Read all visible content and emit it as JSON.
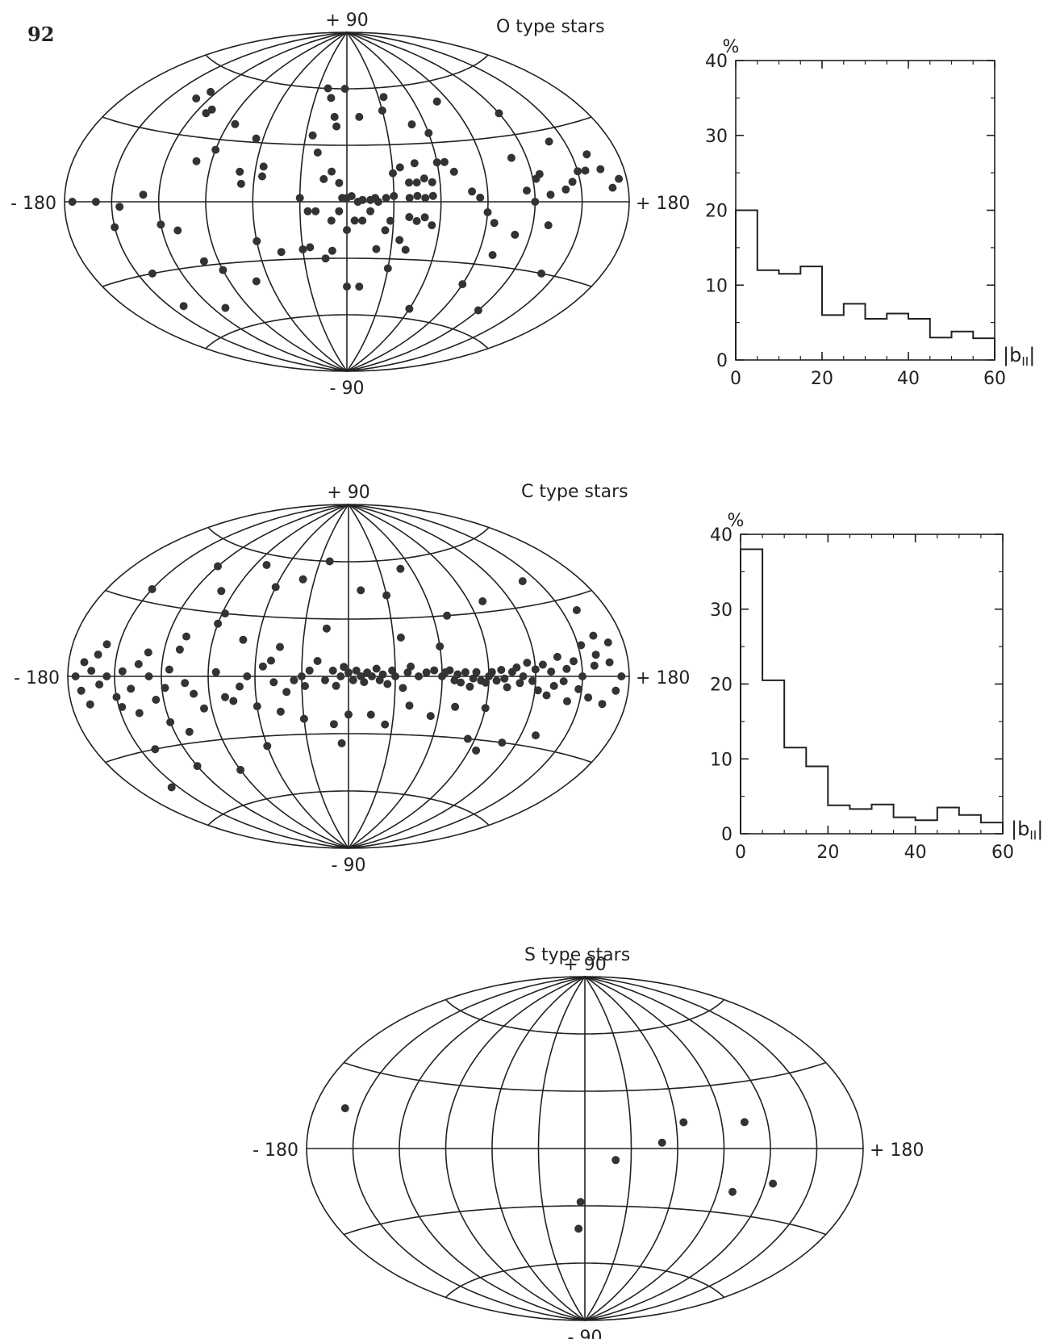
{
  "page_number": "92",
  "chart_data": [
    {
      "type": "scatter",
      "projection": "aitoff",
      "title": "O type stars",
      "lon_labels": [
        "- 180",
        "+ 180"
      ],
      "lat_labels": [
        "+ 90",
        "- 90"
      ],
      "points": [
        [
          -160,
          0
        ],
        [
          -150,
          -10
        ],
        [
          -145,
          -2
        ],
        [
          -140,
          -30
        ],
        [
          -130,
          3
        ],
        [
          -120,
          -10
        ],
        [
          -110,
          -13
        ],
        [
          -100,
          -28
        ],
        [
          -90,
          -33
        ],
        [
          -130,
          46
        ],
        [
          -125,
          50
        ],
        [
          -112,
          41
        ],
        [
          -110,
          43
        ],
        [
          -90,
          25
        ],
        [
          -85,
          38
        ],
        [
          -100,
          19
        ],
        [
          -70,
          15
        ],
        [
          -68,
          9
        ],
        [
          -65,
          32
        ],
        [
          -55,
          18
        ],
        [
          -55,
          13
        ],
        [
          -60,
          -20
        ],
        [
          -45,
          -26
        ],
        [
          -30,
          -25
        ],
        [
          -25,
          -24
        ],
        [
          -15,
          -30
        ],
        [
          -10,
          -26
        ],
        [
          -25,
          -5
        ],
        [
          -30,
          2
        ],
        [
          -20,
          -5
        ],
        [
          -10,
          -10
        ],
        [
          -5,
          -5
        ],
        [
          -15,
          12
        ],
        [
          -10,
          16
        ],
        [
          -5,
          10
        ],
        [
          -20,
          26
        ],
        [
          -25,
          35
        ],
        [
          -15,
          55
        ],
        [
          -20,
          60
        ],
        [
          -10,
          45
        ],
        [
          -8,
          40
        ],
        [
          -2,
          60
        ],
        [
          -3,
          2
        ],
        [
          0,
          2
        ],
        [
          3,
          3
        ],
        [
          7,
          0
        ],
        [
          10,
          1
        ],
        [
          15,
          1
        ],
        [
          18,
          2
        ],
        [
          20,
          0
        ],
        [
          25,
          2
        ],
        [
          30,
          3
        ],
        [
          40,
          2
        ],
        [
          45,
          3
        ],
        [
          50,
          2
        ],
        [
          55,
          3
        ],
        [
          40,
          10
        ],
        [
          45,
          10
        ],
        [
          50,
          12
        ],
        [
          55,
          10
        ],
        [
          30,
          15
        ],
        [
          35,
          18
        ],
        [
          45,
          20
        ],
        [
          60,
          20
        ],
        [
          25,
          -15
        ],
        [
          28,
          -10
        ],
        [
          40,
          -8
        ],
        [
          45,
          -10
        ],
        [
          50,
          -8
        ],
        [
          55,
          -12
        ],
        [
          35,
          -20
        ],
        [
          40,
          -25
        ],
        [
          10,
          -10
        ],
        [
          5,
          -10
        ],
        [
          15,
          -5
        ],
        [
          0,
          -15
        ],
        [
          20,
          -25
        ],
        [
          30,
          -35
        ],
        [
          0,
          -45
        ],
        [
          10,
          -45
        ],
        [
          10,
          45
        ],
        [
          30,
          48
        ],
        [
          35,
          55
        ],
        [
          50,
          40
        ],
        [
          60,
          35
        ],
        [
          65,
          20
        ],
        [
          70,
          15
        ],
        [
          80,
          5
        ],
        [
          85,
          2
        ],
        [
          90,
          -5
        ],
        [
          95,
          -10
        ],
        [
          100,
          -25
        ],
        [
          110,
          -15
        ],
        [
          115,
          5
        ],
        [
          120,
          0
        ],
        [
          122,
          10
        ],
        [
          125,
          12
        ],
        [
          130,
          3
        ],
        [
          140,
          5
        ],
        [
          145,
          8
        ],
        [
          150,
          12
        ],
        [
          155,
          12
        ],
        [
          160,
          18
        ],
        [
          165,
          12
        ],
        [
          170,
          5
        ],
        [
          175,
          8
        ],
        [
          110,
          20
        ],
        [
          120,
          40
        ],
        [
          130,
          -10
        ],
        [
          140,
          25
        ],
        [
          -175,
          0
        ],
        [
          -140,
          -45
        ],
        [
          -110,
          -50
        ],
        [
          -70,
          -40
        ],
        [
          140,
          -30
        ],
        [
          120,
          -50
        ],
        [
          90,
          -40
        ],
        [
          60,
          -55
        ],
        [
          80,
          50
        ]
      ]
    },
    {
      "type": "bar",
      "xlabel": "|b",
      "xlabel_sub": "II",
      "xlabel_suffix": "|",
      "ylabel": "%",
      "xlim": [
        0,
        60
      ],
      "ylim": [
        0,
        40
      ],
      "x_ticks": [
        "0",
        "20",
        "40",
        "60"
      ],
      "y_ticks": [
        "0",
        "10",
        "20",
        "30",
        "40"
      ],
      "bin_edges": [
        0,
        5,
        10,
        15,
        20,
        25,
        30,
        35,
        40,
        45,
        50,
        55,
        60
      ],
      "values": [
        20,
        12,
        11.5,
        12.5,
        6,
        7.5,
        5.5,
        6.2,
        5.5,
        3,
        3.8,
        2.9
      ]
    },
    {
      "type": "scatter",
      "projection": "aitoff",
      "title": "C type stars",
      "lon_labels": [
        "- 180",
        "+ 180"
      ],
      "lat_labels": [
        "+ 90",
        "- 90"
      ],
      "points": [
        [
          -175,
          0
        ],
        [
          -172,
          -5
        ],
        [
          -170,
          5
        ],
        [
          -168,
          -10
        ],
        [
          -165,
          2
        ],
        [
          -162,
          8
        ],
        [
          -160,
          -3
        ],
        [
          -158,
          12
        ],
        [
          -155,
          0
        ],
        [
          -150,
          -8
        ],
        [
          -148,
          -12
        ],
        [
          -145,
          2
        ],
        [
          -140,
          -5
        ],
        [
          -138,
          -15
        ],
        [
          -135,
          5
        ],
        [
          -130,
          10
        ],
        [
          -128,
          0
        ],
        [
          -125,
          -10
        ],
        [
          -120,
          -20
        ],
        [
          -118,
          -5
        ],
        [
          -115,
          3
        ],
        [
          -110,
          12
        ],
        [
          -108,
          18
        ],
        [
          -105,
          -3
        ],
        [
          -100,
          -8
        ],
        [
          -95,
          -15
        ],
        [
          -90,
          25
        ],
        [
          -88,
          30
        ],
        [
          -85,
          2
        ],
        [
          -80,
          -10
        ],
        [
          -75,
          -12
        ],
        [
          -70,
          -5
        ],
        [
          -65,
          0
        ],
        [
          -60,
          -15
        ],
        [
          -55,
          5
        ],
        [
          -50,
          8
        ],
        [
          -48,
          -3
        ],
        [
          -45,
          -18
        ],
        [
          -40,
          -8
        ],
        [
          -35,
          -2
        ],
        [
          -30,
          0
        ],
        [
          -28,
          -5
        ],
        [
          -25,
          3
        ],
        [
          -20,
          8
        ],
        [
          -15,
          -2
        ],
        [
          -10,
          3
        ],
        [
          -8,
          -5
        ],
        [
          -5,
          0
        ],
        [
          -3,
          5
        ],
        [
          0,
          2
        ],
        [
          3,
          -2
        ],
        [
          5,
          3
        ],
        [
          8,
          0
        ],
        [
          10,
          -3
        ],
        [
          12,
          2
        ],
        [
          15,
          0
        ],
        [
          18,
          4
        ],
        [
          20,
          -2
        ],
        [
          22,
          1
        ],
        [
          25,
          -4
        ],
        [
          28,
          3
        ],
        [
          30,
          0
        ],
        [
          35,
          -6
        ],
        [
          38,
          2
        ],
        [
          40,
          5
        ],
        [
          45,
          0
        ],
        [
          50,
          2
        ],
        [
          55,
          3
        ],
        [
          60,
          0
        ],
        [
          62,
          2
        ],
        [
          65,
          3
        ],
        [
          68,
          -2
        ],
        [
          70,
          1
        ],
        [
          72,
          -3
        ],
        [
          75,
          2
        ],
        [
          78,
          -5
        ],
        [
          80,
          -1
        ],
        [
          82,
          2
        ],
        [
          85,
          -2
        ],
        [
          88,
          -3
        ],
        [
          90,
          0
        ],
        [
          92,
          2
        ],
        [
          95,
          -2
        ],
        [
          98,
          3
        ],
        [
          100,
          -1
        ],
        [
          102,
          -5
        ],
        [
          105,
          2
        ],
        [
          108,
          4
        ],
        [
          110,
          -3
        ],
        [
          112,
          0
        ],
        [
          115,
          6
        ],
        [
          118,
          -2
        ],
        [
          120,
          3
        ],
        [
          122,
          -6
        ],
        [
          125,
          5
        ],
        [
          128,
          -8
        ],
        [
          130,
          2
        ],
        [
          132,
          -4
        ],
        [
          135,
          8
        ],
        [
          138,
          -2
        ],
        [
          140,
          3
        ],
        [
          142,
          -10
        ],
        [
          145,
          6
        ],
        [
          148,
          -5
        ],
        [
          150,
          0
        ],
        [
          152,
          12
        ],
        [
          155,
          -8
        ],
        [
          158,
          4
        ],
        [
          160,
          8
        ],
        [
          162,
          15
        ],
        [
          165,
          -10
        ],
        [
          168,
          5
        ],
        [
          170,
          12
        ],
        [
          172,
          -5
        ],
        [
          175,
          0
        ],
        [
          -10,
          -25
        ],
        [
          -5,
          -35
        ],
        [
          15,
          -20
        ],
        [
          25,
          -25
        ],
        [
          40,
          -15
        ],
        [
          55,
          -20
        ],
        [
          70,
          -15
        ],
        [
          85,
          -30
        ],
        [
          95,
          -35
        ],
        [
          110,
          -30
        ],
        [
          130,
          -25
        ],
        [
          -30,
          -22
        ],
        [
          -60,
          -35
        ],
        [
          -90,
          -45
        ],
        [
          -120,
          -40
        ],
        [
          -140,
          -30
        ],
        [
          -155,
          -45
        ],
        [
          -100,
          40
        ],
        [
          -60,
          45
        ],
        [
          -40,
          50
        ],
        [
          -20,
          60
        ],
        [
          10,
          45
        ],
        [
          30,
          42
        ],
        [
          50,
          55
        ],
        [
          70,
          30
        ],
        [
          100,
          35
        ],
        [
          140,
          40
        ],
        [
          160,
          25
        ],
        [
          -150,
          35
        ],
        [
          -120,
          50
        ],
        [
          -80,
          55
        ],
        [
          35,
          20
        ],
        [
          60,
          15
        ],
        [
          -45,
          15
        ],
        [
          -15,
          25
        ],
        [
          -70,
          18
        ],
        [
          90,
          -15
        ],
        [
          -110,
          -25
        ],
        [
          0,
          -20
        ]
      ]
    },
    {
      "type": "bar",
      "xlabel": "|b",
      "xlabel_sub": "II",
      "xlabel_suffix": "|",
      "ylabel": "%",
      "xlim": [
        0,
        60
      ],
      "ylim": [
        0,
        40
      ],
      "x_ticks": [
        "0",
        "20",
        "40",
        "60"
      ],
      "y_ticks": [
        "0",
        "10",
        "20",
        "30",
        "40"
      ],
      "bin_edges": [
        0,
        5,
        10,
        15,
        20,
        25,
        30,
        35,
        40,
        45,
        50,
        55,
        60
      ],
      "values": [
        38,
        20.5,
        11.5,
        9,
        3.8,
        3.3,
        3.9,
        2.2,
        1.8,
        3.5,
        2.5,
        1.5
      ]
    },
    {
      "type": "scatter",
      "projection": "aitoff",
      "title": "S type stars",
      "lon_labels": [
        "- 180",
        "+ 180"
      ],
      "lat_labels": [
        "+ 90",
        "- 90"
      ],
      "points": [
        [
          -160,
          15
        ],
        [
          50,
          3
        ],
        [
          65,
          13
        ],
        [
          105,
          12
        ],
        [
          100,
          -20
        ],
        [
          125,
          -15
        ],
        [
          20,
          -6
        ],
        [
          -3,
          -28
        ],
        [
          -5,
          -42
        ]
      ]
    }
  ]
}
